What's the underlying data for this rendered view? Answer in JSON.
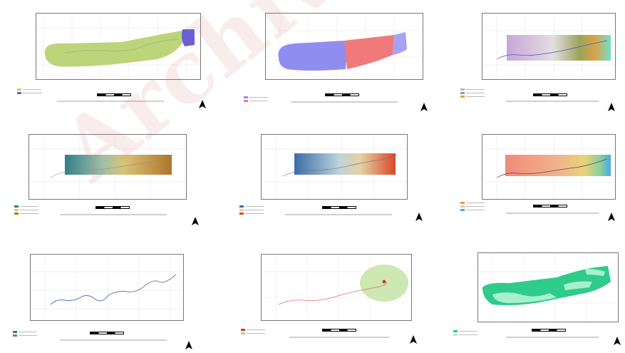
{
  "watermark": {
    "text": "Archive of SID"
  },
  "panels": [
    {
      "id": "p1",
      "legend_items": [
        "#bcd47a",
        "#6b5fd8"
      ]
    },
    {
      "id": "p2",
      "legend_items": [
        "#8f8ef0",
        "#f07a7a",
        "#a4a4f2"
      ]
    },
    {
      "id": "p3",
      "legend_items": [
        "#c9a6d9",
        "#9aa45a",
        "#d9a34a"
      ]
    },
    {
      "id": "p4",
      "legend_items": [
        "#2f7f8a",
        "#d9c37a",
        "#b0742b"
      ]
    },
    {
      "id": "p5",
      "legend_items": [
        "#3a6ea8",
        "#e4d2a2",
        "#d9472b"
      ]
    },
    {
      "id": "p6",
      "legend_items": [
        "#f08a7a",
        "#e8d27a",
        "#4aa8e8"
      ]
    },
    {
      "id": "p7",
      "legend_items": [
        "#3a6eb5",
        "#7a7a7a"
      ]
    },
    {
      "id": "p8",
      "legend_items": [
        "#d03a3a",
        "#a6d98a"
      ]
    },
    {
      "id": "p9",
      "legend_items": [
        "#2ecb8a",
        "#a8f0cc"
      ]
    }
  ],
  "colors": {
    "frame_border": "#777777",
    "watermark": "#d77878",
    "legend_title": "#3a5fb0"
  }
}
